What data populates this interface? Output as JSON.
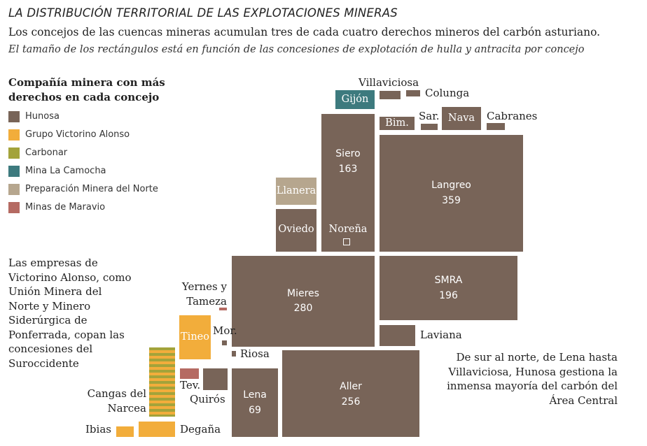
{
  "header": {
    "title": "LA DISTRIBUCIÓN TERRITORIAL DE LAS EXPLOTACIONES MINERAS",
    "subtitle": "Los concejos de las cuencas mineras acumulan tres de cada cuatro derechos mineros del carbón asturiano.",
    "note": "El tamaño de los rectángulos está en función de las concesiones de explotación de hulla y antracita por concejo"
  },
  "legend": {
    "title": "Compañía minera con más derechos en cada concejo",
    "items": [
      {
        "label": "Hunosa",
        "color": "#786458"
      },
      {
        "label": "Grupo Victorino Alonso",
        "color": "#f2ad3b"
      },
      {
        "label": "Carbonar",
        "color": "#a3a33a"
      },
      {
        "label": "Mina La Camocha",
        "color": "#3d7a7e"
      },
      {
        "label": "Preparación Minera del Norte",
        "color": "#b6a68e"
      },
      {
        "label": "Minas de Maravio",
        "color": "#b56a62"
      }
    ]
  },
  "annotations": {
    "left": "Las empresas de Victorino Alonso, como Unión Minera del Norte y Minero Siderúrgica de Ponferrada, copan las concesiones del Suroccidente",
    "right": "De sur al norte, de Lena hasta Villaviciosa, Hunosa gestiona la inmensa mayoría del carbón del Área Central"
  },
  "concejos": {
    "siero": {
      "name": "Siero",
      "value": "163",
      "company": "Hunosa"
    },
    "langreo": {
      "name": "Langreo",
      "value": "359",
      "company": "Hunosa"
    },
    "mieres": {
      "name": "Mieres",
      "value": "280",
      "company": "Hunosa"
    },
    "smra": {
      "name": "SMRA",
      "value": "196",
      "company": "Hunosa"
    },
    "aller": {
      "name": "Aller",
      "value": "256",
      "company": "Hunosa"
    },
    "lena": {
      "name": "Lena",
      "value": "69",
      "company": "Hunosa"
    },
    "gijon": {
      "name": "Gijón",
      "company": "Mina La Camocha"
    },
    "llanera": {
      "name": "Llanera",
      "company": "Preparación Minera del Norte"
    },
    "oviedo": {
      "name": "Oviedo",
      "company": "Hunosa"
    },
    "norena": {
      "name": "Noreña",
      "company": "Hunosa"
    },
    "bimenes": {
      "name": "Bim.",
      "company": "Hunosa"
    },
    "sariego": {
      "name": "Sar.",
      "company": "Hunosa"
    },
    "nava": {
      "name": "Nava",
      "company": "Hunosa"
    },
    "cabranes": {
      "name": "Cabranes",
      "company": "Hunosa"
    },
    "villaviciosa": {
      "name": "Villaviciosa",
      "company": "Hunosa"
    },
    "colunga": {
      "name": "Colunga",
      "company": "Hunosa"
    },
    "laviana": {
      "name": "Laviana",
      "company": "Hunosa"
    },
    "tineo": {
      "name": "Tineo",
      "company": "Grupo Victorino Alonso"
    },
    "yernes": {
      "name": "Yernes y Tameza",
      "company": "Minas de Maravio"
    },
    "morcin": {
      "name": "Mor.",
      "company": "Hunosa"
    },
    "riosa": {
      "name": "Riosa",
      "company": "Hunosa"
    },
    "teverga": {
      "name": "Tev.",
      "company": "Minas de Maravio"
    },
    "quiros": {
      "name": "Quirós",
      "company": "Hunosa"
    },
    "cangas": {
      "name": "Cangas del Narcea",
      "company": "Carbonar / Grupo Victorino Alonso"
    },
    "ibias": {
      "name": "Ibias",
      "company": "Grupo Victorino Alonso"
    },
    "degana": {
      "name": "Degaña",
      "company": "Grupo Victorino Alonso"
    }
  }
}
